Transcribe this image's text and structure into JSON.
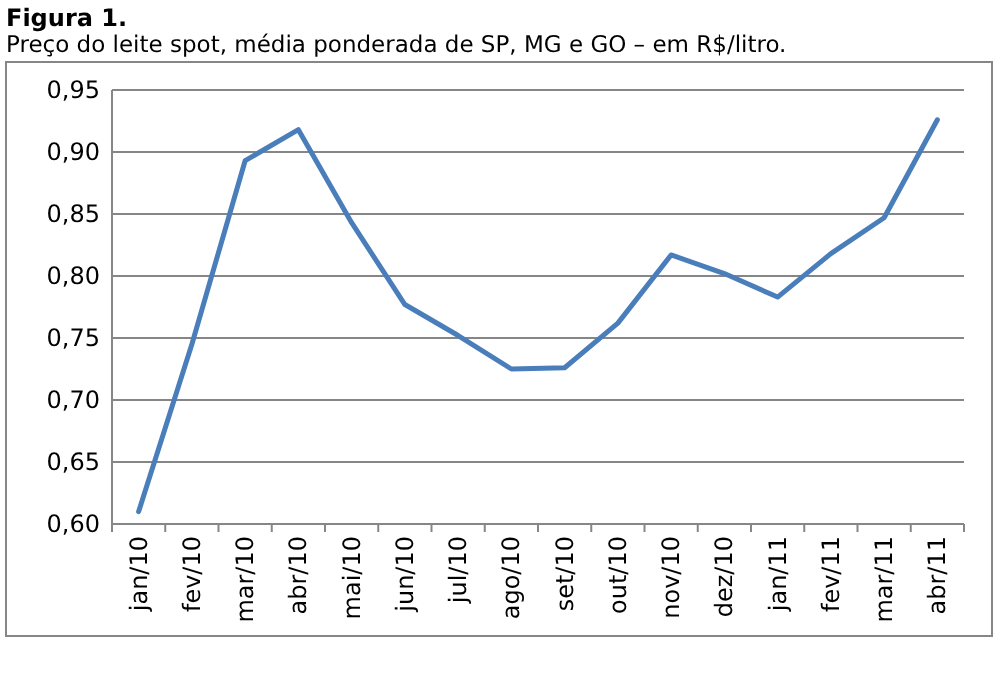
{
  "chart_data": {
    "type": "line",
    "title": "Figura 1.",
    "subtitle": "Preço do leite spot, média ponderada de SP, MG e GO – em R$/litro.",
    "categories": [
      "jan/10",
      "fev/10",
      "mar/10",
      "abr/10",
      "mai/10",
      "jun/10",
      "jul/10",
      "ago/10",
      "set/10",
      "out/10",
      "nov/10",
      "dez/10",
      "jan/11",
      "fev/11",
      "mar/11",
      "abr/11"
    ],
    "series": [
      {
        "color": "#4a7ebb",
        "values": [
          0.61,
          0.745,
          0.893,
          0.918,
          0.843,
          0.777,
          0.752,
          0.725,
          0.726,
          0.762,
          0.817,
          0.802,
          0.783,
          0.818,
          0.847,
          0.926
        ]
      }
    ],
    "ylim": [
      0.6,
      0.95
    ],
    "yticks": [
      {
        "value": 0.6,
        "label": "0,60"
      },
      {
        "value": 0.65,
        "label": "0,65"
      },
      {
        "value": 0.7,
        "label": "0,70"
      },
      {
        "value": 0.75,
        "label": "0,75"
      },
      {
        "value": 0.8,
        "label": "0,80"
      },
      {
        "value": 0.85,
        "label": "0,85"
      },
      {
        "value": 0.9,
        "label": "0,90"
      },
      {
        "value": 0.95,
        "label": "0,95"
      }
    ],
    "grid": "y",
    "marker": "none",
    "line_style": "solid"
  }
}
